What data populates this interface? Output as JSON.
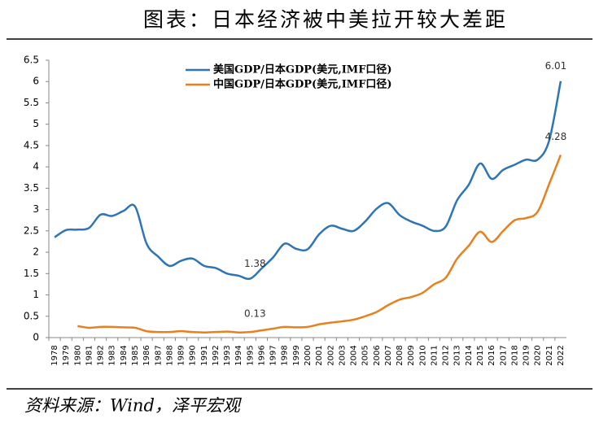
{
  "title": "图表：日本经济被中美拉开较大差距",
  "source": "资料来源：Wind，泽平宏观",
  "chart_data": {
    "type": "line",
    "categories": [
      "1978",
      "1979",
      "1980",
      "1981",
      "1982",
      "1983",
      "1984",
      "1985",
      "1986",
      "1987",
      "1988",
      "1989",
      "1990",
      "1991",
      "1992",
      "1993",
      "1994",
      "1995",
      "1996",
      "1997",
      "1998",
      "1999",
      "2000",
      "2001",
      "2002",
      "2003",
      "2004",
      "2005",
      "2006",
      "2007",
      "2008",
      "2009",
      "2010",
      "2011",
      "2012",
      "2013",
      "2014",
      "2015",
      "2016",
      "2017",
      "2018",
      "2019",
      "2020",
      "2021",
      "2022"
    ],
    "series": [
      {
        "name": "美国GDP/日本GDP(美元,IMF口径)",
        "color": "#2e75b6",
        "values": [
          2.35,
          2.52,
          2.53,
          2.57,
          2.88,
          2.85,
          2.97,
          3.07,
          2.2,
          1.9,
          1.68,
          1.8,
          1.85,
          1.68,
          1.63,
          1.5,
          1.45,
          1.38,
          1.62,
          1.88,
          2.2,
          2.08,
          2.07,
          2.42,
          2.62,
          2.55,
          2.5,
          2.72,
          3.02,
          3.15,
          2.87,
          2.72,
          2.62,
          2.5,
          2.6,
          3.22,
          3.58,
          4.08,
          3.72,
          3.93,
          4.05,
          4.17,
          4.17,
          4.62,
          6.01
        ],
        "value_labels": [
          null,
          null,
          null,
          null,
          null,
          null,
          null,
          null,
          null,
          null,
          null,
          null,
          null,
          null,
          null,
          null,
          null,
          "1.38",
          null,
          null,
          null,
          null,
          null,
          null,
          null,
          null,
          null,
          null,
          null,
          null,
          null,
          null,
          null,
          null,
          null,
          null,
          null,
          null,
          null,
          null,
          null,
          null,
          null,
          null,
          "6.01"
        ]
      },
      {
        "name": "中国GDP/日本GDP(美元,IMF口径)",
        "color": "#e8801e",
        "values": [
          null,
          null,
          0.27,
          0.23,
          0.25,
          0.25,
          0.24,
          0.23,
          0.15,
          0.13,
          0.13,
          0.15,
          0.13,
          0.12,
          0.13,
          0.14,
          0.12,
          0.13,
          0.17,
          0.21,
          0.25,
          0.24,
          0.25,
          0.31,
          0.35,
          0.38,
          0.42,
          0.5,
          0.6,
          0.76,
          0.89,
          0.95,
          1.05,
          1.25,
          1.4,
          1.85,
          2.15,
          2.48,
          2.24,
          2.5,
          2.75,
          2.8,
          2.95,
          3.6,
          4.28
        ],
        "value_labels": [
          null,
          null,
          null,
          null,
          null,
          null,
          null,
          null,
          null,
          null,
          null,
          null,
          null,
          null,
          null,
          null,
          null,
          "0.13",
          null,
          null,
          null,
          null,
          null,
          null,
          null,
          null,
          null,
          null,
          null,
          null,
          null,
          null,
          null,
          null,
          null,
          null,
          null,
          null,
          null,
          null,
          null,
          null,
          null,
          null,
          "4.28"
        ]
      }
    ],
    "ylim": [
      0,
      6.5
    ],
    "yticks": [
      0,
      0.5,
      1,
      1.5,
      2,
      2.5,
      3,
      3.5,
      4,
      4.5,
      5,
      5.5,
      6,
      6.5
    ],
    "grid": false,
    "legend": "top"
  }
}
